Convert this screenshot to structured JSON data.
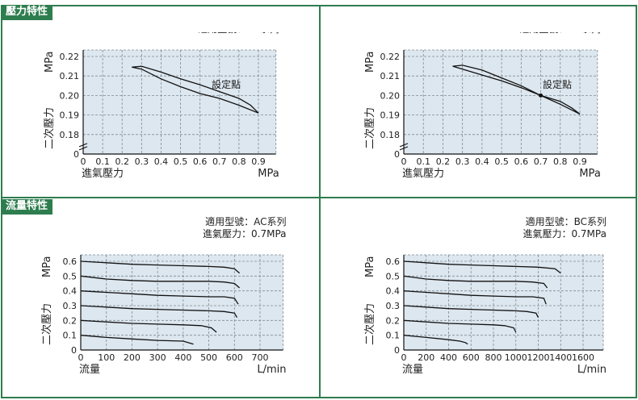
{
  "sections": {
    "pressure": "壓力特性",
    "flow": "流量特性"
  },
  "colors": {
    "frame": "#2e7d4f",
    "plot_bg": "#dde7ef",
    "grid": "#7f8a93",
    "curve": "#111111"
  },
  "chart_data": [
    {
      "type": "line",
      "note_lines": [
        "適用型號：AC系列"
      ],
      "xlabel": "進氣壓力",
      "xunit": "MPa",
      "ylabel": "二次壓力",
      "yunit": "MPa",
      "x_ticks": [
        0,
        0.1,
        0.2,
        0.3,
        0.4,
        0.5,
        0.6,
        0.7,
        0.8,
        0.9
      ],
      "x_tick_labels": [
        "0",
        "0.1",
        "0.2",
        "0.3",
        "0.4",
        "0.5",
        "0.6",
        "0.7",
        "0.8",
        "0.9"
      ],
      "y_ticks": [
        0.18,
        0.19,
        0.2,
        0.21,
        0.22
      ],
      "y_tick_labels": [
        "0.18",
        "0.19",
        "0.20",
        "0.21",
        "0.22"
      ],
      "xlim": [
        0,
        1.0
      ],
      "ylim": [
        0.17,
        0.225
      ],
      "y_break": true,
      "setpoint_label": "設定點",
      "setpoint": null,
      "label_anchor": [
        0.66,
        0.2055
      ],
      "series": [
        {
          "x": [
            0.25,
            0.3,
            0.4,
            0.5,
            0.6,
            0.7,
            0.8,
            0.86,
            0.9
          ],
          "y": [
            0.2145,
            0.215,
            0.212,
            0.2085,
            0.2055,
            0.202,
            0.1985,
            0.195,
            0.191
          ]
        },
        {
          "x": [
            0.9,
            0.8,
            0.7,
            0.6,
            0.5,
            0.4,
            0.3,
            0.25
          ],
          "y": [
            0.191,
            0.195,
            0.1985,
            0.201,
            0.2045,
            0.2085,
            0.2135,
            0.2145
          ]
        }
      ]
    },
    {
      "type": "line",
      "note_lines": [
        "適用型號：BC系列"
      ],
      "xlabel": "進氣壓力",
      "xunit": "MPa",
      "ylabel": "二次壓力",
      "yunit": "MPa",
      "x_ticks": [
        0,
        0.1,
        0.2,
        0.3,
        0.4,
        0.5,
        0.6,
        0.7,
        0.8,
        0.9
      ],
      "x_tick_labels": [
        "0",
        "0.1",
        "0.2",
        "0.3",
        "0.4",
        "0.5",
        "0.6",
        "0.7",
        "0.8",
        "0.9"
      ],
      "y_ticks": [
        0.18,
        0.19,
        0.2,
        0.21,
        0.22
      ],
      "y_tick_labels": [
        "0.18",
        "0.19",
        "0.20",
        "0.21",
        "0.22"
      ],
      "xlim": [
        0,
        1.0
      ],
      "ylim": [
        0.17,
        0.225
      ],
      "y_break": true,
      "setpoint_label": "設定點",
      "setpoint": [
        0.7,
        0.2
      ],
      "label_anchor": [
        0.71,
        0.2055
      ],
      "series": [
        {
          "x": [
            0.25,
            0.3,
            0.4,
            0.5,
            0.6,
            0.7,
            0.8,
            0.86,
            0.9
          ],
          "y": [
            0.215,
            0.2155,
            0.213,
            0.209,
            0.205,
            0.2,
            0.197,
            0.1935,
            0.1905
          ]
        },
        {
          "x": [
            0.9,
            0.8,
            0.7,
            0.6,
            0.5,
            0.4,
            0.3,
            0.25
          ],
          "y": [
            0.1905,
            0.1955,
            0.2,
            0.204,
            0.2075,
            0.2105,
            0.2135,
            0.215
          ]
        }
      ]
    },
    {
      "type": "line",
      "note_lines": [
        "適用型號：AC系列",
        "進氣壓力：0.7MPa"
      ],
      "xlabel": "流量",
      "xunit": "L/min",
      "ylabel": "二次壓力",
      "yunit": "MPa",
      "x_ticks": [
        0,
        100,
        200,
        300,
        400,
        500,
        600,
        700
      ],
      "x_tick_labels": [
        "0",
        "100",
        "200",
        "300",
        "400",
        "500",
        "600",
        "700"
      ],
      "y_ticks": [
        0,
        0.1,
        0.2,
        0.3,
        0.4,
        0.5,
        0.6
      ],
      "y_tick_labels": [
        "0",
        "0.1",
        "0.2",
        "0.3",
        "0.4",
        "0.5",
        "0.6"
      ],
      "xlim": [
        0,
        800
      ],
      "ylim": [
        0,
        0.65
      ],
      "y_break": false,
      "series": [
        {
          "x": [
            0,
            100,
            200,
            300,
            400,
            500,
            560,
            600,
            620
          ],
          "y": [
            0.6,
            0.59,
            0.58,
            0.575,
            0.57,
            0.565,
            0.56,
            0.55,
            0.52
          ]
        },
        {
          "x": [
            0,
            100,
            200,
            300,
            400,
            500,
            560,
            600,
            620
          ],
          "y": [
            0.5,
            0.48,
            0.47,
            0.465,
            0.465,
            0.465,
            0.46,
            0.45,
            0.42
          ]
        },
        {
          "x": [
            0,
            100,
            200,
            300,
            400,
            500,
            560,
            600,
            615
          ],
          "y": [
            0.4,
            0.39,
            0.38,
            0.37,
            0.365,
            0.36,
            0.36,
            0.35,
            0.31
          ]
        },
        {
          "x": [
            0,
            100,
            200,
            300,
            400,
            500,
            560,
            600,
            610
          ],
          "y": [
            0.3,
            0.29,
            0.28,
            0.275,
            0.27,
            0.265,
            0.26,
            0.25,
            0.22
          ]
        },
        {
          "x": [
            0,
            100,
            200,
            300,
            400,
            470,
            510,
            530
          ],
          "y": [
            0.2,
            0.19,
            0.18,
            0.175,
            0.17,
            0.165,
            0.15,
            0.12
          ]
        },
        {
          "x": [
            0,
            100,
            200,
            300,
            400,
            440
          ],
          "y": [
            0.1,
            0.085,
            0.075,
            0.065,
            0.06,
            0.04
          ]
        }
      ]
    },
    {
      "type": "line",
      "note_lines": [
        "適用型號：BC系列",
        "進氣壓力：0.7MPa"
      ],
      "xlabel": "流量",
      "xunit": "L/min",
      "ylabel": "二次壓力",
      "yunit": "MPa",
      "x_ticks": [
        0,
        200,
        400,
        600,
        800,
        1000,
        1200,
        1400,
        1600
      ],
      "x_tick_labels": [
        "0",
        "200",
        "400",
        "600",
        "800",
        "1000",
        "1200",
        "1400",
        "1600"
      ],
      "y_ticks": [
        0,
        0.1,
        0.2,
        0.3,
        0.4,
        0.5,
        0.6
      ],
      "y_tick_labels": [
        "0",
        "0.1",
        "0.2",
        "0.3",
        "0.4",
        "0.5",
        "0.6"
      ],
      "xlim": [
        0,
        1800
      ],
      "ylim": [
        0,
        0.65
      ],
      "y_break": false,
      "series": [
        {
          "x": [
            0,
            200,
            400,
            600,
            800,
            1000,
            1200,
            1350,
            1400
          ],
          "y": [
            0.6,
            0.59,
            0.58,
            0.575,
            0.57,
            0.565,
            0.56,
            0.55,
            0.52
          ]
        },
        {
          "x": [
            0,
            200,
            400,
            600,
            800,
            1000,
            1150,
            1250,
            1280
          ],
          "y": [
            0.5,
            0.48,
            0.47,
            0.465,
            0.465,
            0.465,
            0.46,
            0.45,
            0.42
          ]
        },
        {
          "x": [
            0,
            200,
            400,
            600,
            800,
            1000,
            1150,
            1250,
            1270
          ],
          "y": [
            0.4,
            0.39,
            0.38,
            0.37,
            0.365,
            0.36,
            0.36,
            0.35,
            0.31
          ]
        },
        {
          "x": [
            0,
            200,
            400,
            600,
            800,
            1000,
            1100,
            1180,
            1200
          ],
          "y": [
            0.3,
            0.29,
            0.28,
            0.275,
            0.27,
            0.265,
            0.26,
            0.25,
            0.22
          ]
        },
        {
          "x": [
            0,
            200,
            400,
            600,
            800,
            900,
            980,
            1000
          ],
          "y": [
            0.2,
            0.19,
            0.18,
            0.175,
            0.17,
            0.165,
            0.15,
            0.12
          ]
        },
        {
          "x": [
            0,
            200,
            400,
            500,
            550,
            570
          ],
          "y": [
            0.1,
            0.085,
            0.07,
            0.06,
            0.05,
            0.04
          ]
        }
      ]
    }
  ]
}
